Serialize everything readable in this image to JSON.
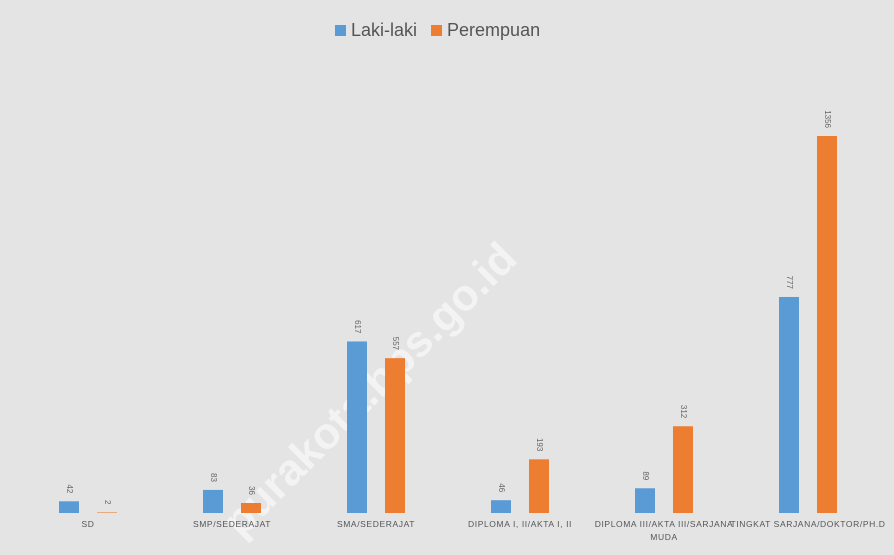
{
  "chart_data": {
    "type": "bar",
    "categories": [
      "SD",
      "SMP/SEDERAJAT",
      "SMA/SEDERAJAT",
      "DIPLOMA I, II/AKTA I, II",
      "DIPLOMA III/AKTA III/SARJANA MUDA",
      "TINGKAT SARJANA/DOKTOR/PH.D"
    ],
    "series": [
      {
        "name": "Laki-laki",
        "color": "#5b9bd5",
        "values": [
          42,
          83,
          617,
          46,
          89,
          777
        ]
      },
      {
        "name": "Perempuan",
        "color": "#ed7d31",
        "values": [
          2,
          36,
          557,
          193,
          312,
          1356
        ]
      }
    ],
    "legend": "top",
    "watermark": "purakota.bps.go.id"
  }
}
